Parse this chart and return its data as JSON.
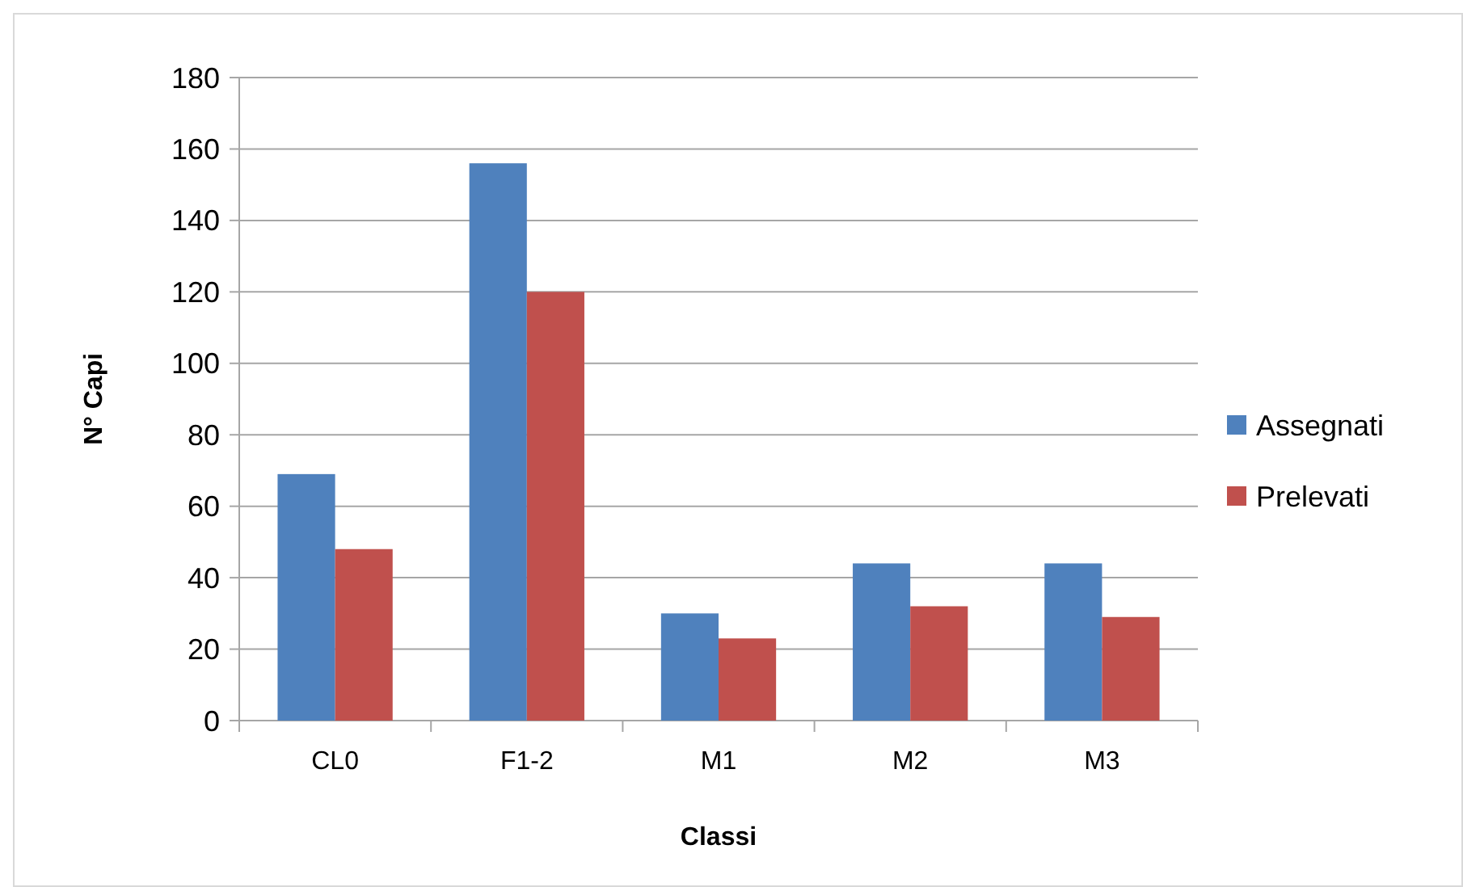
{
  "chart_data": {
    "type": "bar",
    "xlabel": "Classi",
    "ylabel": "N° Capi",
    "categories": [
      "CL0",
      "F1-2",
      "M1",
      "M2",
      "M3"
    ],
    "series": [
      {
        "name": "Assegnati",
        "color": "#4f81bd",
        "values": [
          69,
          156,
          30,
          44,
          44
        ]
      },
      {
        "name": "Prelevati",
        "color": "#c0504d",
        "values": [
          48,
          120,
          23,
          32,
          29
        ]
      }
    ],
    "ylim": [
      0,
      180
    ],
    "yticks": [
      0,
      20,
      40,
      60,
      80,
      100,
      120,
      140,
      160,
      180
    ],
    "grid": "y",
    "legend": "right"
  }
}
